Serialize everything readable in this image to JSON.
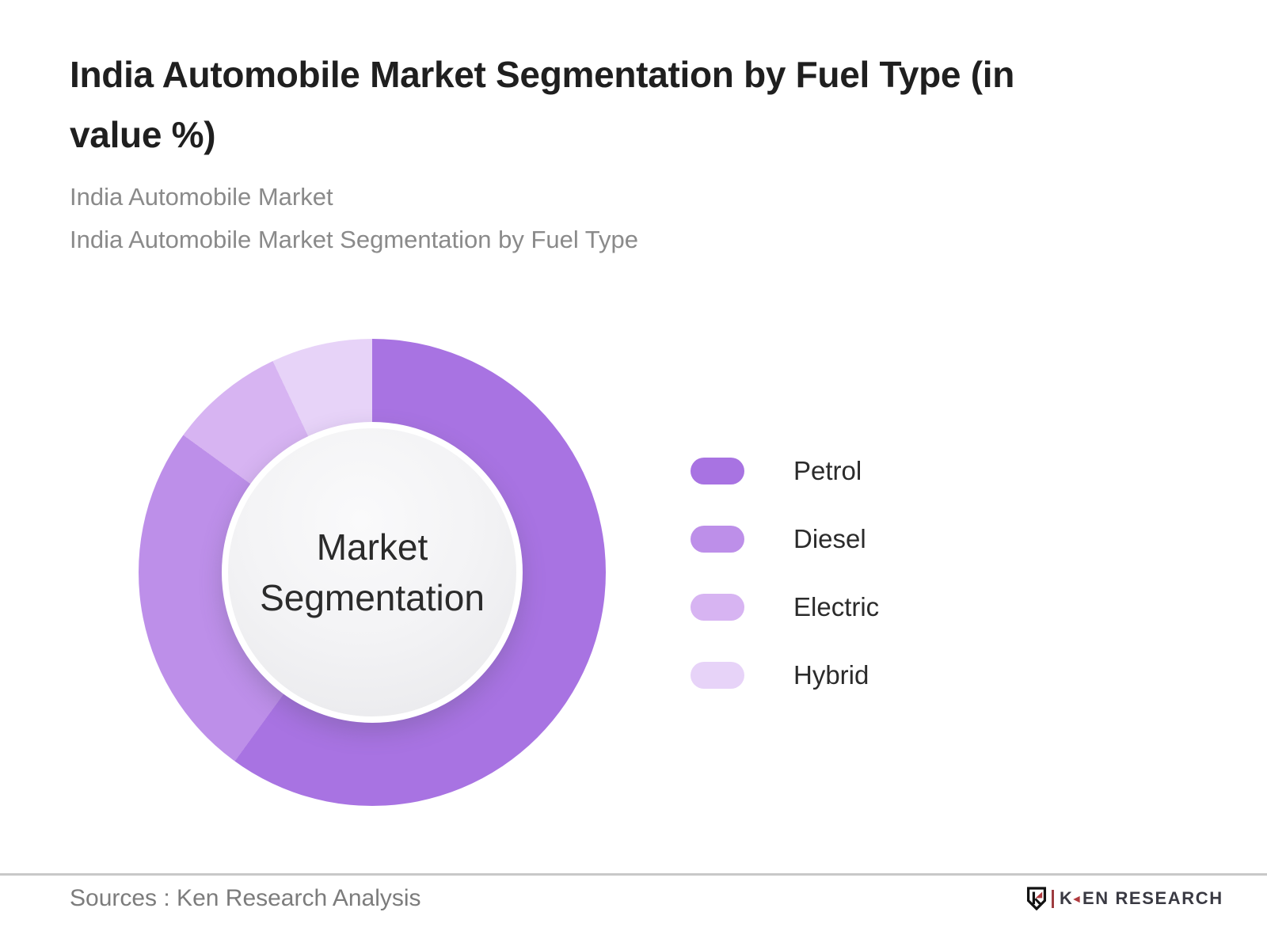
{
  "header": {
    "title_line1": "India Automobile Market Segmentation by Fuel Type (in",
    "title_line2": "value %)",
    "subtitle_line1": "India Automobile Market",
    "subtitle_line2": "India Automobile Market Segmentation by Fuel Type"
  },
  "chart_data": {
    "type": "pie",
    "variant": "donut",
    "title": "India Automobile Market Segmentation by Fuel Type (in value %)",
    "categories": [
      "Petrol",
      "Diesel",
      "Electric",
      "Hybrid"
    ],
    "values": [
      60,
      25,
      8,
      7
    ],
    "unit": "value %",
    "colors": [
      "#a873e2",
      "#bd8fe9",
      "#d7b4f2",
      "#e7d3f8"
    ],
    "start_angle_deg": 0,
    "direction": "clockwise",
    "legend_position": "right",
    "center_label_line1": "Market",
    "center_label_line2": "Segmentation",
    "data_labels_shown": false
  },
  "footer": {
    "source_text": "Sources : Ken Research Analysis",
    "logo_k": "K",
    "logo_arrow": "◄",
    "logo_rest": "EN RESEARCH"
  },
  "colors": {
    "title_text": "#1f1f1f",
    "subtitle_text": "#8a8a8a",
    "center_text": "#2b2b2b",
    "divider": "#c8c8c8",
    "source_text": "#7c7c7c",
    "logo_red": "#b03a3e",
    "logo_charcoal": "#3a3a43"
  }
}
